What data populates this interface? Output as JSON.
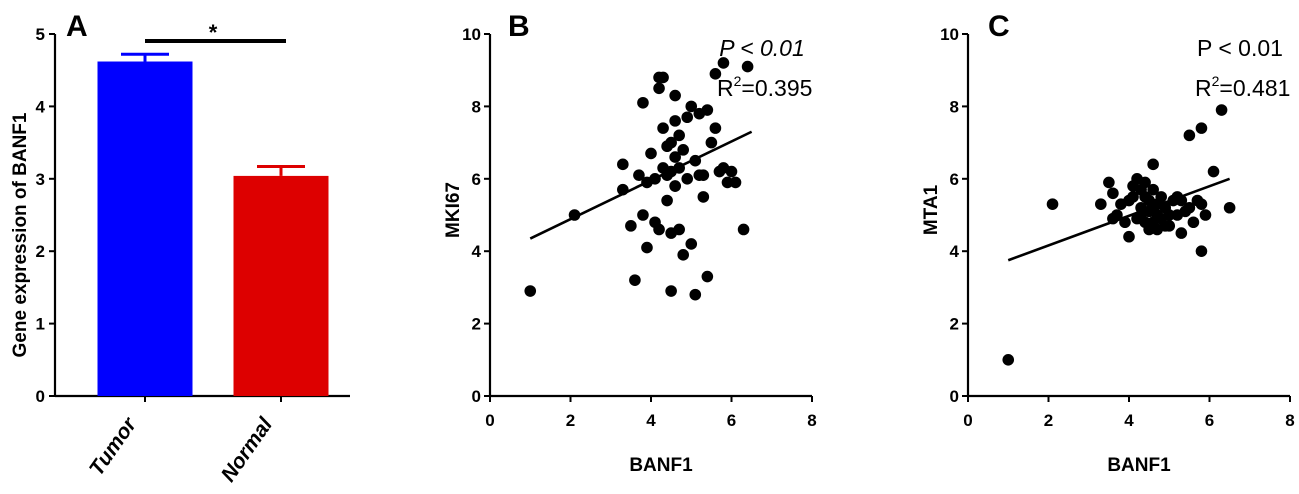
{
  "chart_data": [
    {
      "panel": "A",
      "type": "bar",
      "ylabel": "Gene expression of BANF1",
      "xlabel": "",
      "categories": [
        "Tumor",
        "Normal"
      ],
      "values": [
        4.62,
        3.04
      ],
      "errors": [
        0.1,
        0.13
      ],
      "colors": [
        "#0000ff",
        "#dd0000"
      ],
      "ylim": [
        0,
        5
      ],
      "yticks": [
        0,
        1,
        2,
        3,
        4,
        5
      ],
      "significance": "*"
    },
    {
      "panel": "B",
      "type": "scatter",
      "xlabel": "BANF1",
      "ylabel": "MKI67",
      "xlim": [
        0,
        8
      ],
      "ylim": [
        0,
        10
      ],
      "xticks": [
        0,
        2,
        4,
        6,
        8
      ],
      "yticks": [
        0,
        2,
        4,
        6,
        8,
        10
      ],
      "p_text": "P < 0.01",
      "r2_prefix": "R",
      "r2_exp": "2",
      "r2_value": "=0.395",
      "fit": {
        "x": [
          1.0,
          6.5
        ],
        "y": [
          4.35,
          7.3
        ]
      },
      "points": {
        "x": [
          1.0,
          2.1,
          3.3,
          3.3,
          3.5,
          3.7,
          3.8,
          3.9,
          4.0,
          4.1,
          4.2,
          4.2,
          4.3,
          4.3,
          4.3,
          4.4,
          4.4,
          4.4,
          4.5,
          4.5,
          4.5,
          4.6,
          4.6,
          4.6,
          4.6,
          4.7,
          4.7,
          4.7,
          4.8,
          4.8,
          4.9,
          4.9,
          5.0,
          5.0,
          5.1,
          5.1,
          5.2,
          5.3,
          5.3,
          5.4,
          5.4,
          5.5,
          5.6,
          5.7,
          5.8,
          5.8,
          5.9,
          6.0,
          6.1,
          6.3,
          6.4,
          3.6,
          3.9,
          4.1,
          4.5,
          4.2,
          3.8,
          4.6,
          5.6,
          5.2
        ],
        "y": [
          2.9,
          5.0,
          6.4,
          5.7,
          4.7,
          6.1,
          5.0,
          5.9,
          6.7,
          6.0,
          8.8,
          4.6,
          8.8,
          7.4,
          6.3,
          6.9,
          6.1,
          5.4,
          7.0,
          6.2,
          4.5,
          8.3,
          7.6,
          6.6,
          5.8,
          7.2,
          6.3,
          4.6,
          6.8,
          3.9,
          7.7,
          6.0,
          8.0,
          4.2,
          6.5,
          2.8,
          7.8,
          5.5,
          6.1,
          7.9,
          3.3,
          7.0,
          8.9,
          6.2,
          9.2,
          6.3,
          5.9,
          6.2,
          5.9,
          4.6,
          9.1,
          3.2,
          4.1,
          4.8,
          2.9,
          8.5,
          8.1,
          5.8,
          7.4,
          6.1
        ]
      }
    },
    {
      "panel": "C",
      "type": "scatter",
      "xlabel": "BANF1",
      "ylabel": "MTA1",
      "xlim": [
        0,
        8
      ],
      "ylim": [
        0,
        10
      ],
      "xticks": [
        0,
        2,
        4,
        6,
        8
      ],
      "yticks": [
        0,
        2,
        4,
        6,
        8,
        10
      ],
      "p_text": "P < 0.01",
      "r2_prefix": "R",
      "r2_exp": "2",
      "r2_value": "=0.481",
      "fit": {
        "x": [
          1.0,
          6.5
        ],
        "y": [
          3.75,
          6.0
        ]
      },
      "points": {
        "x": [
          1.0,
          2.1,
          3.3,
          3.5,
          3.6,
          3.7,
          3.8,
          3.9,
          4.0,
          4.0,
          4.1,
          4.2,
          4.2,
          4.3,
          4.3,
          4.4,
          4.4,
          4.5,
          4.5,
          4.5,
          4.6,
          4.6,
          4.6,
          4.7,
          4.7,
          4.7,
          4.8,
          4.8,
          4.9,
          4.9,
          5.0,
          5.0,
          5.1,
          5.2,
          5.3,
          5.3,
          5.4,
          5.5,
          5.5,
          5.6,
          5.7,
          5.8,
          5.8,
          5.9,
          6.1,
          6.3,
          6.5,
          3.6,
          4.1,
          4.4,
          4.6,
          5.2,
          5.8,
          4.3
        ],
        "y": [
          1.0,
          5.3,
          5.3,
          5.9,
          4.9,
          5.0,
          5.3,
          4.8,
          5.4,
          4.4,
          5.5,
          6.0,
          4.9,
          5.7,
          5.2,
          5.5,
          4.8,
          5.4,
          5.1,
          4.6,
          6.4,
          5.7,
          5.2,
          5.3,
          5.0,
          4.6,
          5.5,
          4.9,
          5.2,
          4.7,
          5.0,
          4.7,
          5.4,
          5.0,
          5.4,
          4.5,
          5.1,
          7.2,
          5.2,
          4.8,
          5.4,
          7.4,
          4.0,
          5.0,
          6.2,
          7.9,
          5.2,
          5.6,
          5.8,
          5.9,
          4.8,
          5.5,
          5.3,
          5.0
        ]
      }
    }
  ]
}
